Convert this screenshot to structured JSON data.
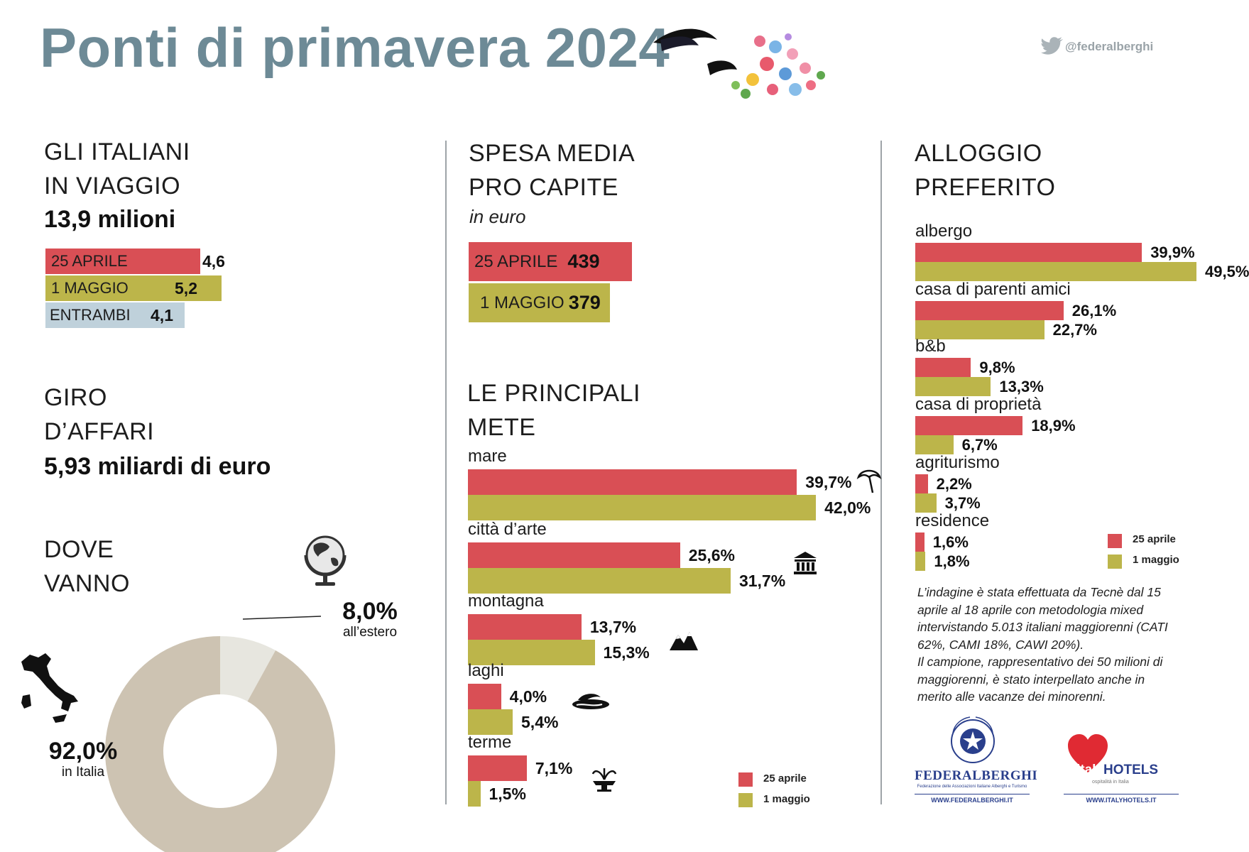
{
  "header": {
    "title": "Ponti di primavera 2024",
    "twitter_handle": "@federalberghi"
  },
  "colors": {
    "april": "#d94f55",
    "may": "#bcb54a",
    "both": "#bfd1db",
    "donut_italy": "#cdc3b2",
    "donut_abroad": "#e7e6df",
    "title": "#6d8a96"
  },
  "travelers": {
    "title_line1": "GLI ITALIANI",
    "title_line2": "IN VIAGGIO",
    "total": "13,9 milioni",
    "bars": [
      {
        "label": "25 APRILE",
        "value_text": "4,6",
        "value": 4.6
      },
      {
        "label": "1 MAGGIO",
        "value_text": "5,2",
        "value": 5.2
      },
      {
        "label": "ENTRAMBI",
        "value_text": "4,1",
        "value": 4.1
      }
    ]
  },
  "turnover": {
    "title_line1": "GIRO",
    "title_line2": "D’AFFARI",
    "total": "5,93 miliardi di euro"
  },
  "destinations": {
    "title_line1": "DOVE",
    "title_line2": "VANNO"
  },
  "spending": {
    "title_line1": "SPESA MEDIA",
    "title_line2": "PRO CAPITE",
    "unit": "in euro",
    "bars": [
      {
        "label": "25 APRILE",
        "value_text": "439",
        "value": 439
      },
      {
        "label": "1 MAGGIO",
        "value_text": "379",
        "value": 379
      }
    ]
  },
  "top_destinations": {
    "title_line1": "LE PRINCIPALI",
    "title_line2": "METE"
  },
  "accommodation": {
    "title_line1": "ALLOGGIO",
    "title_line2": "PREFERITO"
  },
  "legend": {
    "april": "25 aprile",
    "may": "1 maggio"
  },
  "methodology": [
    "L’indagine è stata effettuata da Tecnè dal 15",
    "aprile al 18 aprile con metodologia mixed",
    "intervistando 5.013 italiani maggiorenni (CATI",
    "62%, CAMI 18%, CAWI 20%).",
    "Il campione, rappresentativo dei 50 milioni di",
    "maggiorenni, è stato interpellato anche in",
    "merito alle vacanze dei minorenni."
  ],
  "logos": {
    "federalberghi": {
      "arc_text": "L’OSPITALITÀ ITALIANA",
      "name": "FEDERALBERGHI",
      "tagline": "Federazione delle Associazioni Italiane Alberghi e Turismo",
      "url": "WWW.FEDERALBERGHI.IT"
    },
    "italyhotels": {
      "name_a": "italy",
      "name_b": "HOTELS",
      "tagline": "ospitalità in Italia",
      "url": "WWW.ITALYHOTELS.IT"
    }
  },
  "chart_data": [
    {
      "type": "pie",
      "title": "DOVE VANNO",
      "categories": [
        "in Italia",
        "all’estero"
      ],
      "values": [
        92.0,
        8.0
      ],
      "value_labels": [
        "92,0%",
        "8,0%"
      ],
      "donut": true
    },
    {
      "type": "bar",
      "orientation": "horizontal",
      "title": "LE PRINCIPALI METE",
      "categories": [
        "mare",
        "città d’arte",
        "montagna",
        "laghi",
        "terme"
      ],
      "series": [
        {
          "name": "25 aprile",
          "values": [
            39.7,
            25.6,
            13.7,
            4.0,
            7.1
          ],
          "labels": [
            "39,7%",
            "25,6%",
            "13,7%",
            "4,0%",
            "7,1%"
          ]
        },
        {
          "name": "1 maggio",
          "values": [
            42.0,
            31.7,
            15.3,
            5.4,
            1.5
          ],
          "labels": [
            "42,0%",
            "31,7%",
            "15,3%",
            "5,4%",
            "1,5%"
          ]
        }
      ],
      "icons": [
        "beach-umbrella-icon",
        "museum-icon",
        "mountains-icon",
        "lake-icon",
        "fountain-icon"
      ],
      "legend": "bottom-right"
    },
    {
      "type": "bar",
      "orientation": "horizontal",
      "title": "ALLOGGIO PREFERITO",
      "categories": [
        "albergo",
        "casa di parenti amici",
        "b&b",
        "casa di proprietà",
        "agriturismo",
        "residence"
      ],
      "series": [
        {
          "name": "25 aprile",
          "values": [
            39.9,
            26.1,
            9.8,
            18.9,
            2.2,
            1.6
          ],
          "labels": [
            "39,9%",
            "26,1%",
            "9,8%",
            "18,9%",
            "2,2%",
            "1,6%"
          ]
        },
        {
          "name": "1 maggio",
          "values": [
            49.5,
            22.7,
            13.3,
            6.7,
            3.7,
            1.8
          ],
          "labels": [
            "49,5%",
            "22,7%",
            "13,3%",
            "6,7%",
            "3,7%",
            "1,8%"
          ]
        }
      ],
      "legend": "bottom-right"
    }
  ]
}
